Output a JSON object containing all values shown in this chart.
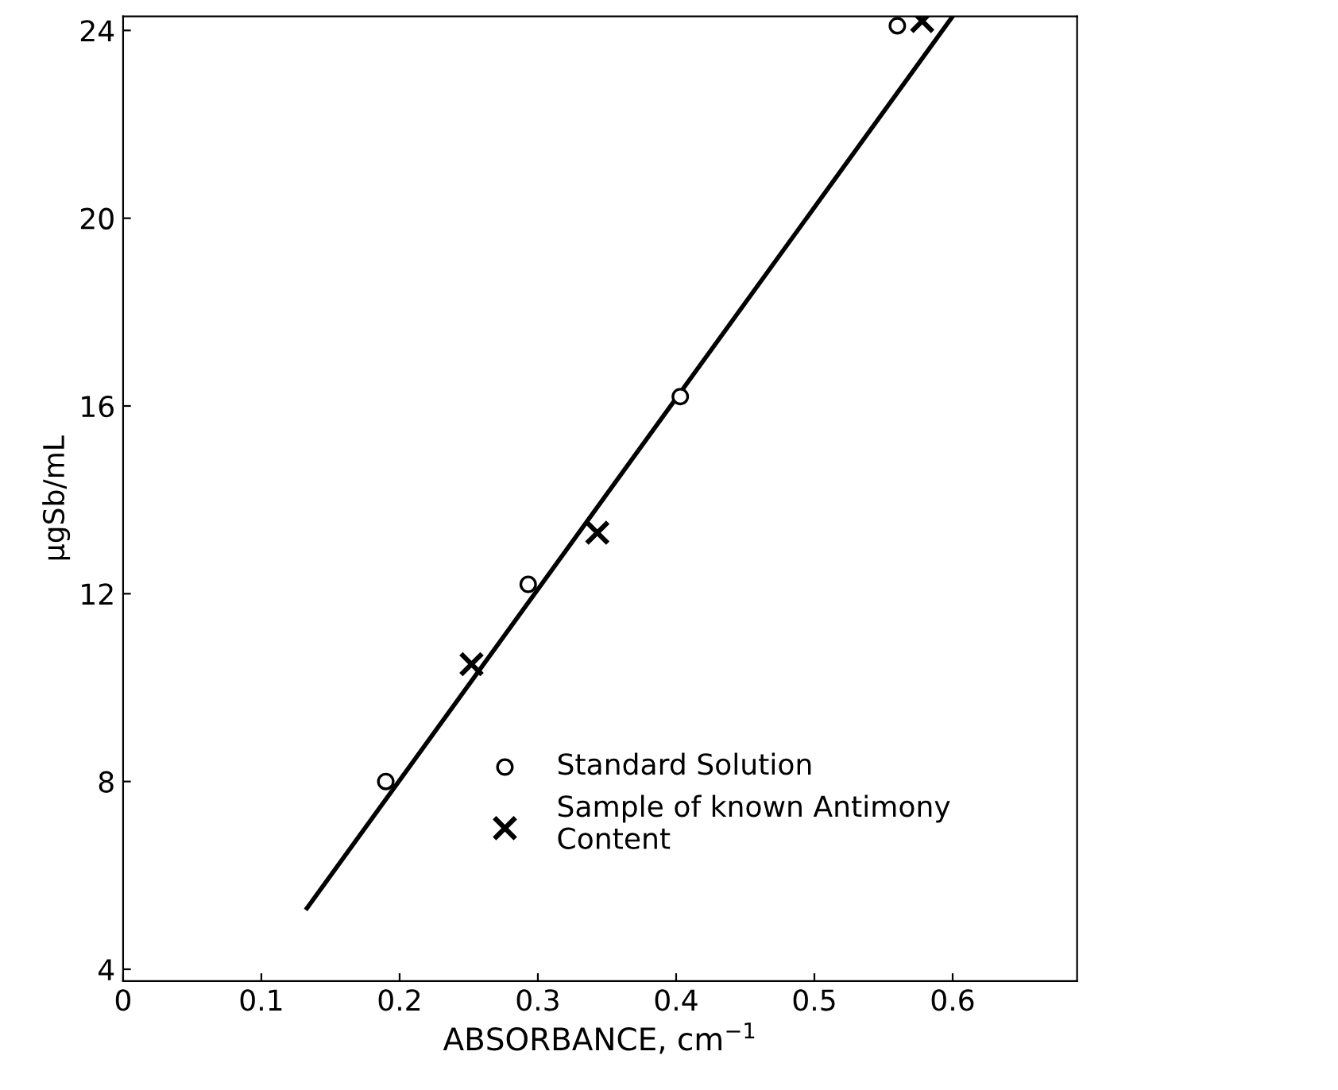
{
  "chart_data": {
    "type": "scatter",
    "xlabel": "ABSORBANCE, cm$^{−1}$",
    "ylabel": "μgSb/mL",
    "xlim": [
      0,
      0.69
    ],
    "ylim": [
      3.75,
      24.3
    ],
    "xticks": [
      0,
      0.1,
      0.2,
      0.3,
      0.4,
      0.5,
      0.6
    ],
    "yticks": [
      4,
      8,
      12,
      16,
      20,
      24
    ],
    "grid": false,
    "legend": "lower right",
    "series": [
      {
        "type": "line",
        "x": [
          0.133,
          0.6
        ],
        "values": [
          5.3,
          24.3
        ],
        "color": "#000000",
        "line_style": "solid",
        "marker": "none"
      },
      {
        "name": "Standard Solution",
        "x": [
          0.19,
          0.293,
          0.403,
          0.56
        ],
        "values": [
          8.0,
          12.2,
          16.2,
          24.1
        ],
        "color": "#000000",
        "marker": "circle"
      },
      {
        "name": "Sample of known Antimony\nContent",
        "x": [
          0.252,
          0.343,
          0.578
        ],
        "values": [
          10.5,
          13.3,
          24.2
        ],
        "color": "#000000",
        "marker": "cross"
      }
    ]
  }
}
